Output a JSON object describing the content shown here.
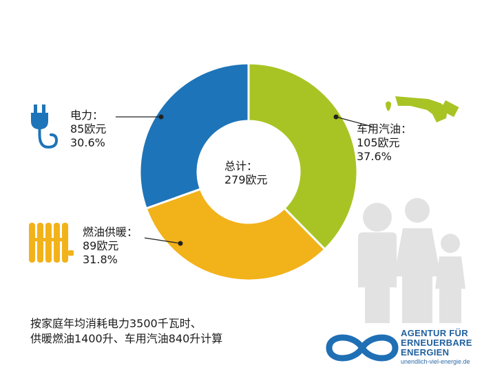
{
  "chart_data": {
    "type": "pie",
    "donut": true,
    "center_label": {
      "title": "总计：",
      "value": "279欧元"
    },
    "slices": [
      {
        "key": "fuel",
        "name": "车用汽油：",
        "value_label": "105欧元",
        "percent_label": "37.6%",
        "value": 105,
        "percent": 37.6,
        "color": "#a8c424",
        "icon": "fuel-pump-icon"
      },
      {
        "key": "heating",
        "name": "燃油供暖：",
        "value_label": "89欧元",
        "percent_label": "31.8%",
        "value": 89,
        "percent": 31.8,
        "color": "#f2b21a",
        "icon": "radiator-icon"
      },
      {
        "key": "electric",
        "name": "电力：",
        "value_label": "85欧元",
        "percent_label": "30.6%",
        "value": 85,
        "percent": 30.6,
        "color": "#1e74b8",
        "icon": "power-plug-icon"
      }
    ]
  },
  "footnote": {
    "line1": "按家庭年均消耗电力3500千瓦时、",
    "line2": "供暖燃油1400升、车用汽油840升计算"
  },
  "logo": {
    "line1": "AGENTUR FÜR",
    "line2": "ERNEUERBARE",
    "line3": "ENERGIEN",
    "url": "unendlich-viel-energie.de",
    "color": "#1f6fb5"
  },
  "family_icon": "family-silhouette-icon",
  "icon_colors": {
    "plug": "#1e74b8",
    "fuel": "#a8c424",
    "radiator": "#f2b21a",
    "family": "#e2e2e2"
  }
}
